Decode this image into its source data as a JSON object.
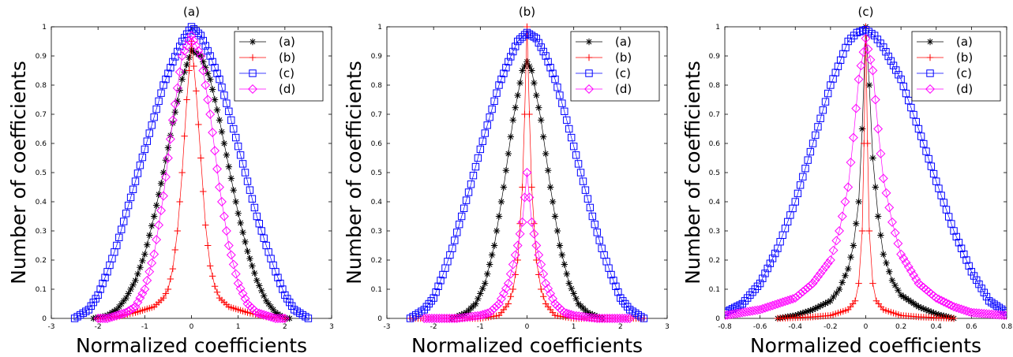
{
  "colors": {
    "a": "#000000",
    "b": "#ff0000",
    "c": "#0000ff",
    "d": "#ff00ff"
  },
  "chart_data": [
    {
      "type": "line",
      "title": "(a)",
      "xlabel": "Normalized coefficients",
      "ylabel": "Number of coefficients",
      "xlim": [
        -3,
        3
      ],
      "ylim": [
        0,
        1
      ],
      "xticks": [
        "-3",
        "-2",
        "-1",
        "0",
        "1",
        "2",
        "3"
      ],
      "yticks": [
        "0",
        "0.1",
        "0.2",
        "0.3",
        "0.4",
        "0.5",
        "0.6",
        "0.7",
        "0.8",
        "0.9",
        "1"
      ],
      "legend": "top-right",
      "series": [
        {
          "name": "(a)",
          "marker": "star",
          "color": "#000000",
          "x": [
            -2.1,
            -1.8,
            -1.6,
            -1.4,
            -1.2,
            -1.0,
            -0.8,
            -0.6,
            -0.4,
            -0.2,
            0.0,
            0.2,
            0.4,
            0.6,
            0.8,
            1.0,
            1.2,
            1.4,
            1.6,
            1.8,
            2.0,
            2.1
          ],
          "y": [
            0.0,
            0.01,
            0.03,
            0.07,
            0.13,
            0.22,
            0.35,
            0.5,
            0.67,
            0.82,
            0.92,
            0.9,
            0.82,
            0.68,
            0.52,
            0.36,
            0.23,
            0.13,
            0.06,
            0.02,
            0.0,
            0.0
          ]
        },
        {
          "name": "(b)",
          "marker": "plus",
          "color": "#ff0000",
          "x": [
            -2.0,
            -1.6,
            -1.2,
            -1.0,
            -0.8,
            -0.6,
            -0.5,
            -0.4,
            -0.3,
            -0.2,
            -0.1,
            0.0,
            0.1,
            0.2,
            0.3,
            0.4,
            0.5,
            0.6,
            0.8,
            1.0,
            1.2,
            1.6,
            2.0
          ],
          "y": [
            0.0,
            0.005,
            0.02,
            0.03,
            0.04,
            0.07,
            0.1,
            0.17,
            0.3,
            0.5,
            0.75,
            0.95,
            0.78,
            0.55,
            0.32,
            0.18,
            0.11,
            0.07,
            0.04,
            0.03,
            0.02,
            0.005,
            0.0
          ]
        },
        {
          "name": "(c)",
          "marker": "square",
          "color": "#0000ff",
          "x": [
            -2.5,
            -2.2,
            -2.0,
            -1.8,
            -1.6,
            -1.4,
            -1.2,
            -1.0,
            -0.8,
            -0.6,
            -0.4,
            -0.2,
            0.0,
            0.2,
            0.4,
            0.6,
            0.8,
            1.0,
            1.2,
            1.4,
            1.6,
            1.8,
            2.0,
            2.2,
            2.5
          ],
          "y": [
            0.0,
            0.03,
            0.08,
            0.16,
            0.25,
            0.36,
            0.47,
            0.58,
            0.69,
            0.8,
            0.88,
            0.95,
            1.0,
            0.97,
            0.9,
            0.82,
            0.71,
            0.59,
            0.47,
            0.35,
            0.25,
            0.16,
            0.08,
            0.03,
            0.0
          ]
        },
        {
          "name": "(d)",
          "marker": "diamond",
          "color": "#ff00ff",
          "x": [
            -2.0,
            -1.8,
            -1.6,
            -1.4,
            -1.2,
            -1.0,
            -0.8,
            -0.6,
            -0.4,
            -0.2,
            0.0,
            0.2,
            0.4,
            0.6,
            0.8,
            1.0,
            1.2,
            1.4,
            1.6,
            1.8,
            2.0
          ],
          "y": [
            0.0,
            0.0,
            0.01,
            0.02,
            0.04,
            0.1,
            0.22,
            0.42,
            0.68,
            0.9,
            0.97,
            0.9,
            0.7,
            0.45,
            0.25,
            0.12,
            0.05,
            0.02,
            0.01,
            0.0,
            0.0
          ]
        }
      ]
    },
    {
      "type": "line",
      "title": "(b)",
      "xlabel": "Normalized coefficients",
      "ylabel": "Number of coefficients",
      "xlim": [
        -3,
        3
      ],
      "ylim": [
        0,
        1
      ],
      "xticks": [
        "-3",
        "-2",
        "-1",
        "0",
        "1",
        "2",
        "3"
      ],
      "yticks": [
        "0",
        "0.1",
        "0.2",
        "0.3",
        "0.4",
        "0.5",
        "0.6",
        "0.7",
        "0.8",
        "0.9",
        "1"
      ],
      "legend": "top-right",
      "series": [
        {
          "name": "(a)",
          "marker": "star",
          "color": "#000000",
          "x": [
            -1.6,
            -1.3,
            -1.1,
            -0.9,
            -0.7,
            -0.5,
            -0.3,
            -0.1,
            0.0,
            0.1,
            0.3,
            0.5,
            0.7,
            0.9,
            1.1,
            1.3,
            1.6
          ],
          "y": [
            0.0,
            0.02,
            0.05,
            0.12,
            0.25,
            0.45,
            0.68,
            0.85,
            0.88,
            0.85,
            0.68,
            0.45,
            0.25,
            0.12,
            0.05,
            0.02,
            0.0
          ]
        },
        {
          "name": "(b)",
          "marker": "plus",
          "color": "#ff0000",
          "x": [
            -2.5,
            -2.0,
            -1.0,
            -0.6,
            -0.4,
            -0.3,
            -0.2,
            -0.1,
            -0.05,
            0.0,
            0.05,
            0.1,
            0.2,
            0.3,
            0.4,
            0.6,
            1.0,
            2.0,
            2.5
          ],
          "y": [
            0.0,
            0.0,
            0.0,
            0.01,
            0.05,
            0.1,
            0.2,
            0.45,
            0.7,
            1.0,
            0.7,
            0.45,
            0.2,
            0.1,
            0.05,
            0.01,
            0.0,
            0.0,
            0.0
          ]
        },
        {
          "name": "(c)",
          "marker": "square",
          "color": "#0000ff",
          "x": [
            -2.5,
            -2.2,
            -2.0,
            -1.8,
            -1.6,
            -1.4,
            -1.2,
            -1.0,
            -0.8,
            -0.6,
            -0.4,
            -0.2,
            0.0,
            0.2,
            0.4,
            0.6,
            0.8,
            1.0,
            1.2,
            1.4,
            1.6,
            1.8,
            2.0,
            2.2,
            2.5
          ],
          "y": [
            0.0,
            0.03,
            0.07,
            0.15,
            0.24,
            0.35,
            0.46,
            0.58,
            0.69,
            0.8,
            0.88,
            0.95,
            0.98,
            0.96,
            0.9,
            0.82,
            0.71,
            0.59,
            0.47,
            0.35,
            0.24,
            0.15,
            0.07,
            0.03,
            0.0
          ]
        },
        {
          "name": "(d)",
          "marker": "diamond",
          "color": "#ff00ff",
          "x": [
            -2.2,
            -1.5,
            -1.0,
            -0.8,
            -0.6,
            -0.4,
            -0.2,
            -0.1,
            0.0,
            0.1,
            0.2,
            0.4,
            0.6,
            0.8,
            1.0,
            1.5,
            2.2
          ],
          "y": [
            0.0,
            0.0,
            0.01,
            0.02,
            0.05,
            0.12,
            0.25,
            0.33,
            0.5,
            0.33,
            0.25,
            0.12,
            0.05,
            0.02,
            0.01,
            0.0,
            0.0
          ]
        }
      ]
    },
    {
      "type": "line",
      "title": "(c)",
      "xlabel": "Normalized coefficients",
      "ylabel": "Number of coefficients",
      "xlim": [
        -0.8,
        0.8
      ],
      "ylim": [
        0,
        1
      ],
      "xticks": [
        "-0.8",
        "-0.6",
        "-0.4",
        "-0.2",
        "0",
        "0.2",
        "0.4",
        "0.6",
        "0.8"
      ],
      "yticks": [
        "0",
        "0.1",
        "0.2",
        "0.3",
        "0.4",
        "0.5",
        "0.6",
        "0.7",
        "0.8",
        "0.9",
        "1"
      ],
      "legend": "top-right",
      "series": [
        {
          "name": "(a)",
          "marker": "star",
          "color": "#000000",
          "x": [
            -0.5,
            -0.4,
            -0.3,
            -0.2,
            -0.15,
            -0.1,
            -0.07,
            -0.04,
            -0.02,
            0.0,
            0.02,
            0.04,
            0.07,
            0.1,
            0.15,
            0.2,
            0.3,
            0.4,
            0.5
          ],
          "y": [
            0.0,
            0.01,
            0.03,
            0.06,
            0.1,
            0.17,
            0.25,
            0.4,
            0.65,
            1.0,
            0.8,
            0.55,
            0.35,
            0.22,
            0.13,
            0.08,
            0.04,
            0.015,
            0.0
          ]
        },
        {
          "name": "(b)",
          "marker": "plus",
          "color": "#ff0000",
          "x": [
            -0.5,
            -0.3,
            -0.2,
            -0.1,
            -0.06,
            -0.04,
            -0.02,
            -0.01,
            0.0,
            0.01,
            0.02,
            0.04,
            0.06,
            0.1,
            0.2,
            0.3,
            0.5
          ],
          "y": [
            0.0,
            0.005,
            0.01,
            0.03,
            0.06,
            0.12,
            0.3,
            0.6,
            1.0,
            0.6,
            0.3,
            0.12,
            0.06,
            0.03,
            0.01,
            0.005,
            0.0
          ]
        },
        {
          "name": "(c)",
          "marker": "square",
          "color": "#0000ff",
          "x": [
            -0.8,
            -0.7,
            -0.6,
            -0.5,
            -0.4,
            -0.3,
            -0.2,
            -0.1,
            -0.05,
            0.0,
            0.05,
            0.1,
            0.2,
            0.3,
            0.4,
            0.5,
            0.6,
            0.7,
            0.8
          ],
          "y": [
            0.02,
            0.05,
            0.12,
            0.24,
            0.4,
            0.6,
            0.8,
            0.95,
            0.98,
            0.99,
            0.97,
            0.93,
            0.82,
            0.65,
            0.47,
            0.3,
            0.16,
            0.06,
            0.02
          ]
        },
        {
          "name": "(d)",
          "marker": "diamond",
          "color": "#ff00ff",
          "x": [
            -0.8,
            -0.6,
            -0.4,
            -0.3,
            -0.2,
            -0.15,
            -0.1,
            -0.07,
            -0.04,
            0.0,
            0.04,
            0.07,
            0.1,
            0.15,
            0.2,
            0.3,
            0.4,
            0.5,
            0.6,
            0.8
          ],
          "y": [
            0.01,
            0.03,
            0.07,
            0.12,
            0.2,
            0.3,
            0.45,
            0.62,
            0.82,
            0.96,
            0.85,
            0.65,
            0.48,
            0.33,
            0.22,
            0.12,
            0.07,
            0.04,
            0.02,
            0.01
          ]
        }
      ]
    }
  ]
}
